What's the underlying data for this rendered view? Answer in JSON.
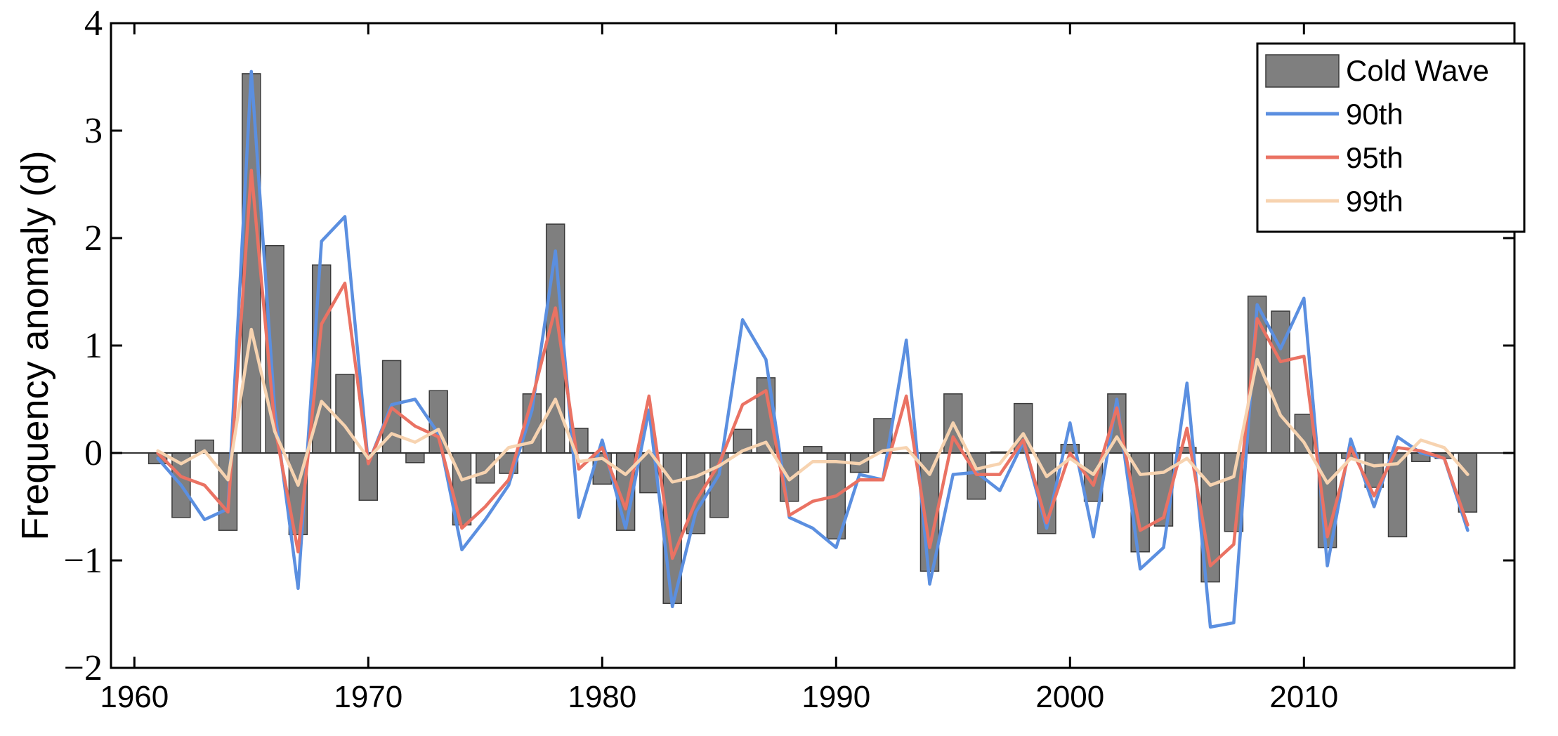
{
  "chart_data": {
    "type": "bar+line",
    "title": "",
    "xlabel": "",
    "ylabel": "Frequency anomaly (d)",
    "xlim": [
      1959,
      2019
    ],
    "ylim": [
      -2,
      4
    ],
    "x_ticks": [
      1960,
      1970,
      1980,
      1990,
      2000,
      2010
    ],
    "y_ticks": [
      -2,
      -1,
      0,
      1,
      2,
      3,
      4
    ],
    "y_tick_labels": [
      "−2",
      "−1",
      "0",
      "1",
      "2",
      "3",
      "4"
    ],
    "legend_position": "top-right",
    "colors": {
      "bar_fill": "#7f7f7f",
      "bar_stroke": "#3a3a3a",
      "p90": "#5b8fe0",
      "p95": "#ea7263",
      "p99": "#f7d3b0",
      "zero_line": "#333333",
      "axis": "#000000"
    },
    "x": [
      1961,
      1962,
      1963,
      1964,
      1965,
      1966,
      1967,
      1968,
      1969,
      1970,
      1971,
      1972,
      1973,
      1974,
      1975,
      1976,
      1977,
      1978,
      1979,
      1980,
      1981,
      1982,
      1983,
      1984,
      1985,
      1986,
      1987,
      1988,
      1989,
      1990,
      1991,
      1992,
      1993,
      1994,
      1995,
      1996,
      1997,
      1998,
      1999,
      2000,
      2001,
      2002,
      2003,
      2004,
      2005,
      2006,
      2007,
      2008,
      2009,
      2010,
      2011,
      2012,
      2013,
      2014,
      2015,
      2016,
      2017
    ],
    "series": [
      {
        "name": "Cold Wave",
        "kind": "bar",
        "color": "#7f7f7f",
        "values": [
          -0.1,
          -0.6,
          0.12,
          -0.72,
          3.53,
          1.93,
          -0.76,
          1.75,
          0.73,
          -0.44,
          0.86,
          -0.09,
          0.58,
          -0.67,
          -0.28,
          -0.19,
          0.55,
          2.13,
          0.23,
          -0.29,
          -0.72,
          -0.37,
          -1.4,
          -0.75,
          -0.6,
          0.22,
          0.7,
          -0.45,
          0.06,
          -0.8,
          -0.18,
          0.32,
          0.0,
          -1.1,
          0.55,
          -0.43,
          0.01,
          0.46,
          -0.75,
          0.08,
          -0.45,
          0.55,
          -0.92,
          -0.68,
          0.05,
          -1.2,
          -0.73,
          1.46,
          1.32,
          0.36,
          -0.88,
          -0.05,
          -0.32,
          -0.78,
          -0.08,
          -0.05,
          -0.55
        ]
      },
      {
        "name": "90th",
        "kind": "line",
        "color": "#5b8fe0",
        "values": [
          -0.05,
          -0.3,
          -0.62,
          -0.52,
          3.55,
          0.4,
          -1.26,
          1.97,
          2.2,
          -0.1,
          0.45,
          0.5,
          0.18,
          -0.9,
          -0.62,
          -0.3,
          0.4,
          1.88,
          -0.6,
          0.12,
          -0.7,
          0.4,
          -1.43,
          -0.55,
          -0.2,
          1.24,
          0.87,
          -0.6,
          -0.7,
          -0.88,
          -0.2,
          -0.25,
          1.05,
          -1.22,
          -0.2,
          -0.18,
          -0.35,
          0.1,
          -0.7,
          0.28,
          -0.78,
          0.5,
          -1.08,
          -0.88,
          0.65,
          -1.62,
          -1.58,
          1.38,
          0.97,
          1.44,
          -1.05,
          0.13,
          -0.5,
          0.15,
          0.0,
          -0.05,
          -0.72
        ]
      },
      {
        "name": "95th",
        "kind": "line",
        "color": "#ea7263",
        "values": [
          0.0,
          -0.22,
          -0.3,
          -0.55,
          2.63,
          0.25,
          -0.92,
          1.2,
          1.58,
          -0.1,
          0.42,
          0.25,
          0.15,
          -0.7,
          -0.5,
          -0.25,
          0.5,
          1.35,
          -0.15,
          0.05,
          -0.52,
          0.53,
          -0.98,
          -0.45,
          -0.1,
          0.45,
          0.58,
          -0.58,
          -0.45,
          -0.4,
          -0.25,
          -0.25,
          0.53,
          -0.88,
          0.15,
          -0.2,
          -0.2,
          0.12,
          -0.65,
          0.0,
          -0.3,
          0.42,
          -0.72,
          -0.6,
          0.23,
          -1.05,
          -0.85,
          1.25,
          0.85,
          0.9,
          -0.78,
          0.05,
          -0.4,
          0.05,
          0.02,
          -0.05,
          -0.67
        ]
      },
      {
        "name": "99th",
        "kind": "line",
        "color": "#f7d3b0",
        "values": [
          0.02,
          -0.1,
          0.02,
          -0.25,
          1.15,
          0.2,
          -0.3,
          0.48,
          0.25,
          -0.05,
          0.18,
          0.1,
          0.22,
          -0.25,
          -0.18,
          0.05,
          0.1,
          0.5,
          -0.08,
          -0.05,
          -0.2,
          0.02,
          -0.27,
          -0.22,
          -0.12,
          0.02,
          0.1,
          -0.25,
          -0.08,
          -0.08,
          -0.1,
          0.02,
          0.05,
          -0.2,
          0.28,
          -0.15,
          -0.1,
          0.18,
          -0.22,
          -0.05,
          -0.2,
          0.15,
          -0.2,
          -0.18,
          -0.05,
          -0.3,
          -0.22,
          0.87,
          0.35,
          0.1,
          -0.28,
          -0.05,
          -0.12,
          -0.1,
          0.12,
          0.05,
          -0.2
        ]
      }
    ]
  }
}
